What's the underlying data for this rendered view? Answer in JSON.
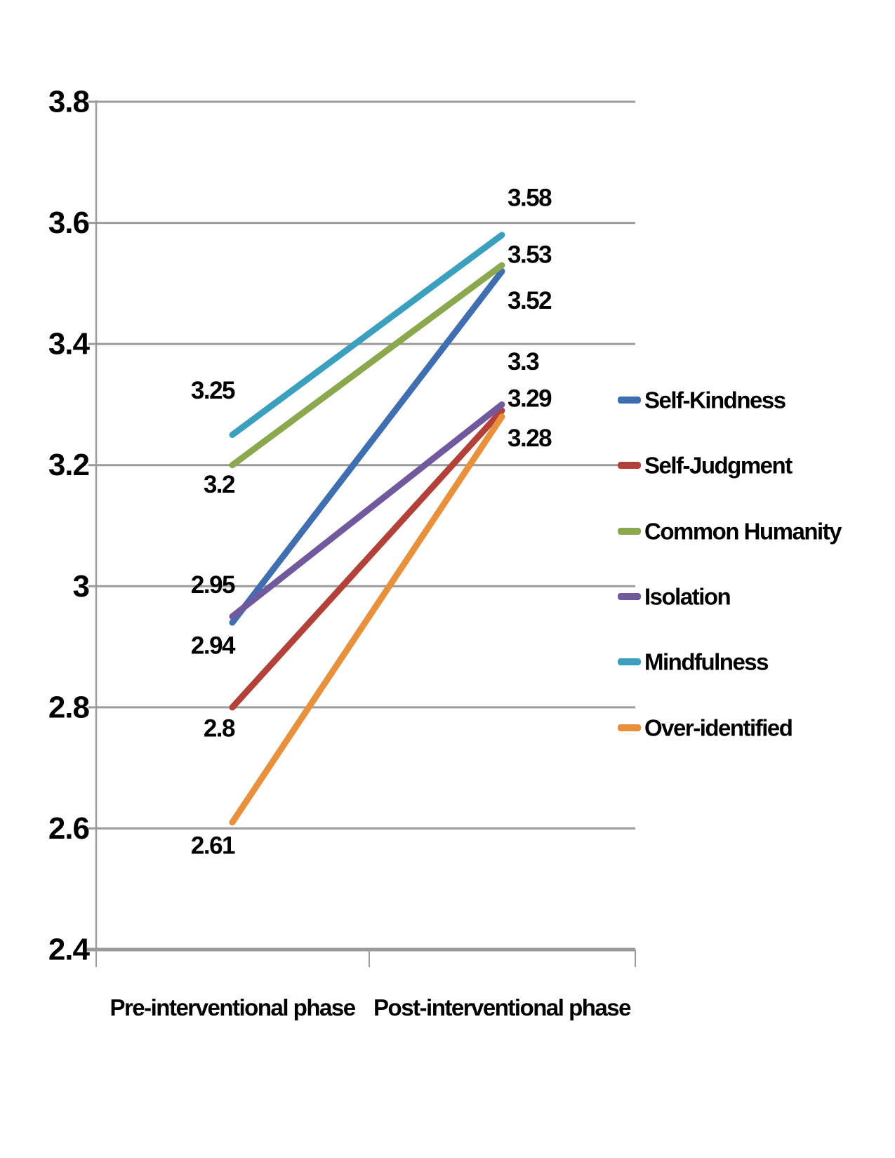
{
  "chart_data": {
    "type": "line",
    "title": "",
    "categories": [
      "Pre-interventional phase",
      "Post-interventional phase"
    ],
    "series": [
      {
        "name": "Self-Kindness",
        "color": "#3F6FB0",
        "values": [
          2.94,
          3.52
        ],
        "labels": [
          "2.94",
          "3.52"
        ]
      },
      {
        "name": "Self-Judgment",
        "color": "#B2413A",
        "values": [
          2.8,
          3.29
        ],
        "labels": [
          "2.8",
          "3.29"
        ]
      },
      {
        "name": "Common Humanity",
        "color": "#8CA84E",
        "values": [
          3.2,
          3.53
        ],
        "labels": [
          "3.2",
          "3.53"
        ]
      },
      {
        "name": "Isolation",
        "color": "#70599C",
        "values": [
          2.95,
          3.3
        ],
        "labels": [
          "2.95",
          "3.3"
        ]
      },
      {
        "name": "Mindfulness",
        "color": "#3BA0BE",
        "values": [
          3.25,
          3.58
        ],
        "labels": [
          "3.25",
          "3.58"
        ]
      },
      {
        "name": "Over-identified",
        "color": "#E8913D",
        "values": [
          2.61,
          3.28
        ],
        "labels": [
          "2.61",
          "3.28"
        ]
      }
    ],
    "y_axis": {
      "min": 2.4,
      "max": 3.8,
      "step": 0.2,
      "tick_labels": [
        "2.4",
        "2.6",
        "2.8",
        "3",
        "3.2",
        "3.4",
        "3.6",
        "3.8"
      ]
    },
    "grid": true,
    "legend_position": "right",
    "data_labels_shown": true
  },
  "colors": {
    "background": "#FFFFFF",
    "gridline": "#9B9B9B",
    "axis": "#9B9B9B",
    "label_text": "#000000"
  }
}
